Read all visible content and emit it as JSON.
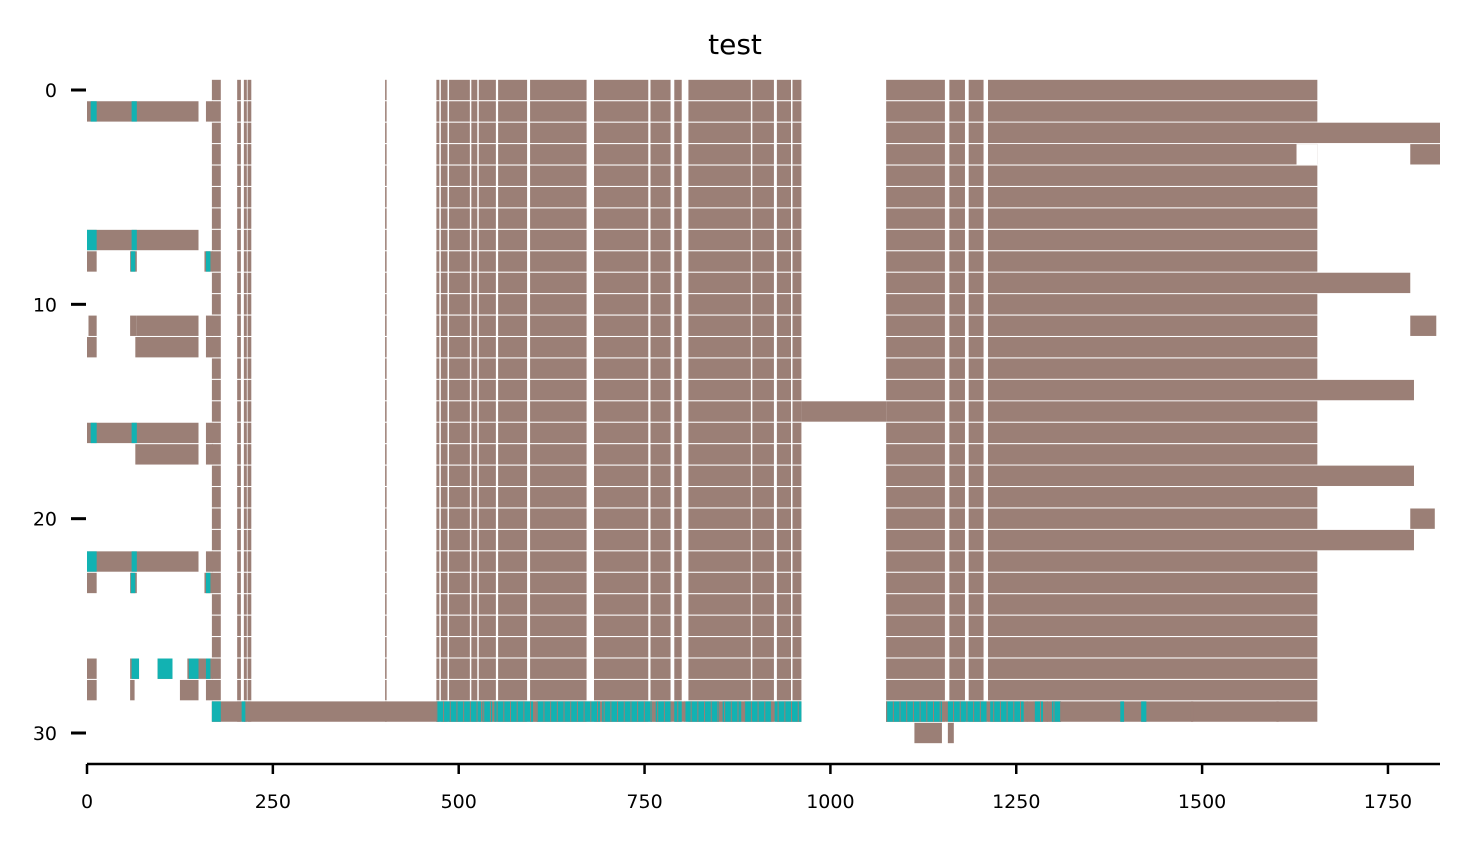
{
  "chart_data": {
    "type": "broken_barh",
    "title": "test",
    "xlabel": "",
    "ylabel": "",
    "xlim": [
      0,
      1820
    ],
    "ylim": [
      31.5,
      -0.5
    ],
    "xticks": [
      0,
      250,
      500,
      750,
      1000,
      1250,
      1500,
      1750
    ],
    "yticks": [
      0,
      10,
      20,
      30
    ],
    "grid": false,
    "colors": {
      "bar": "#9b7f76",
      "highlight": "#12b2b2"
    },
    "row_height": 0.95,
    "template_segments": [
      [
        168,
        180
      ],
      [
        202,
        207
      ],
      [
        211,
        215
      ],
      [
        216,
        221
      ],
      [
        401,
        403
      ],
      [
        470,
        474
      ],
      [
        476,
        485
      ],
      [
        487,
        515
      ],
      [
        517,
        525
      ],
      [
        527,
        550
      ],
      [
        553,
        592
      ],
      [
        596,
        672
      ],
      [
        682,
        755
      ],
      [
        758,
        785
      ],
      [
        790,
        800
      ],
      [
        809,
        893
      ],
      [
        895,
        924
      ],
      [
        928,
        947
      ],
      [
        949,
        961
      ],
      [
        1075,
        1154
      ],
      [
        1160,
        1181
      ],
      [
        1186,
        1206
      ],
      [
        1212,
        1655
      ]
    ],
    "template_rows": [
      0,
      1,
      2,
      3,
      4,
      5,
      6,
      7,
      8,
      9,
      10,
      11,
      12,
      13,
      14,
      15,
      16,
      17,
      18,
      19,
      20,
      21,
      22,
      23,
      24,
      25,
      26,
      27,
      28,
      29
    ],
    "extra_bars": [
      {
        "row": 1,
        "segments": [
          [
            0,
            150
          ],
          [
            160,
            169
          ]
        ],
        "highlights": [
          [
            5,
            13
          ],
          [
            60,
            67
          ]
        ]
      },
      {
        "row": 2,
        "segments": [
          [
            1212,
            1820
          ]
        ]
      },
      {
        "row": 3,
        "segments": [
          [
            1212,
            1627
          ],
          [
            1780,
            1820
          ]
        ],
        "gaps": [
          [
            1627,
            1655
          ]
        ]
      },
      {
        "row": 7,
        "segments": [
          [
            0,
            150
          ]
        ],
        "highlights": [
          [
            0,
            13
          ],
          [
            60,
            67
          ]
        ]
      },
      {
        "row": 8,
        "segments": [
          [
            0,
            13
          ],
          [
            58,
            67
          ],
          [
            158,
            169
          ]
        ],
        "highlights": [
          [
            59,
            65
          ],
          [
            160,
            166
          ]
        ]
      },
      {
        "row": 9,
        "segments": [
          [
            1212,
            1780
          ]
        ]
      },
      {
        "row": 11,
        "segments": [
          [
            2,
            13
          ],
          [
            58,
            67
          ],
          [
            67,
            150
          ],
          [
            160,
            169
          ]
        ]
      },
      {
        "row": 11,
        "segments": [
          [
            1780,
            1815
          ]
        ]
      },
      {
        "row": 12,
        "segments": [
          [
            0,
            13
          ],
          [
            65,
            150
          ],
          [
            160,
            169
          ]
        ]
      },
      {
        "row": 14,
        "segments": [
          [
            1212,
            1785
          ]
        ]
      },
      {
        "row": 15,
        "segments": [
          [
            961,
            1075
          ]
        ]
      },
      {
        "row": 16,
        "segments": [
          [
            0,
            150
          ],
          [
            160,
            169
          ]
        ],
        "highlights": [
          [
            5,
            13
          ],
          [
            60,
            67
          ]
        ]
      },
      {
        "row": 17,
        "segments": [
          [
            65,
            150
          ],
          [
            160,
            169
          ]
        ]
      },
      {
        "row": 18,
        "segments": [
          [
            1212,
            1785
          ]
        ]
      },
      {
        "row": 20,
        "segments": [
          [
            1780,
            1813
          ]
        ]
      },
      {
        "row": 21,
        "segments": [
          [
            1212,
            1785
          ]
        ]
      },
      {
        "row": 22,
        "segments": [
          [
            0,
            150
          ],
          [
            160,
            169
          ]
        ],
        "highlights": [
          [
            0,
            13
          ],
          [
            60,
            67
          ]
        ]
      },
      {
        "row": 23,
        "segments": [
          [
            0,
            13
          ],
          [
            58,
            67
          ],
          [
            158,
            169
          ]
        ],
        "highlights": [
          [
            59,
            65
          ],
          [
            160,
            166
          ]
        ]
      },
      {
        "row": 27,
        "segments": [
          [
            0,
            13
          ],
          [
            58,
            70
          ],
          [
            95,
            115
          ],
          [
            135,
            169
          ]
        ],
        "highlights": [
          [
            60,
            70
          ],
          [
            95,
            115
          ],
          [
            137,
            150
          ],
          [
            160,
            166
          ]
        ]
      },
      {
        "row": 28,
        "segments": [
          [
            0,
            13
          ],
          [
            58,
            64
          ],
          [
            125,
            150
          ],
          [
            160,
            169
          ]
        ]
      },
      {
        "row": 29,
        "segments": [
          [
            168,
            961
          ],
          [
            1075,
            1310
          ],
          [
            1390,
            1395
          ],
          [
            1418,
            1425
          ],
          [
            1485,
            1488
          ],
          [
            1600,
            1603
          ]
        ]
      },
      {
        "row": 30,
        "segments": [
          [
            1113,
            1150
          ],
          [
            1158,
            1166
          ]
        ]
      }
    ],
    "row29_highlights": [
      [
        168,
        180
      ],
      [
        208,
        213
      ],
      [
        470,
        530
      ],
      [
        532,
        545
      ],
      [
        548,
        600
      ],
      [
        605,
        690
      ],
      [
        693,
        760
      ],
      [
        765,
        785
      ],
      [
        790,
        800
      ],
      [
        805,
        850
      ],
      [
        855,
        880
      ],
      [
        885,
        920
      ],
      [
        925,
        961
      ],
      [
        1075,
        1150
      ],
      [
        1158,
        1210
      ],
      [
        1215,
        1260
      ],
      [
        1275,
        1286
      ],
      [
        1298,
        1310
      ],
      [
        1390,
        1395
      ],
      [
        1418,
        1425
      ]
    ]
  }
}
